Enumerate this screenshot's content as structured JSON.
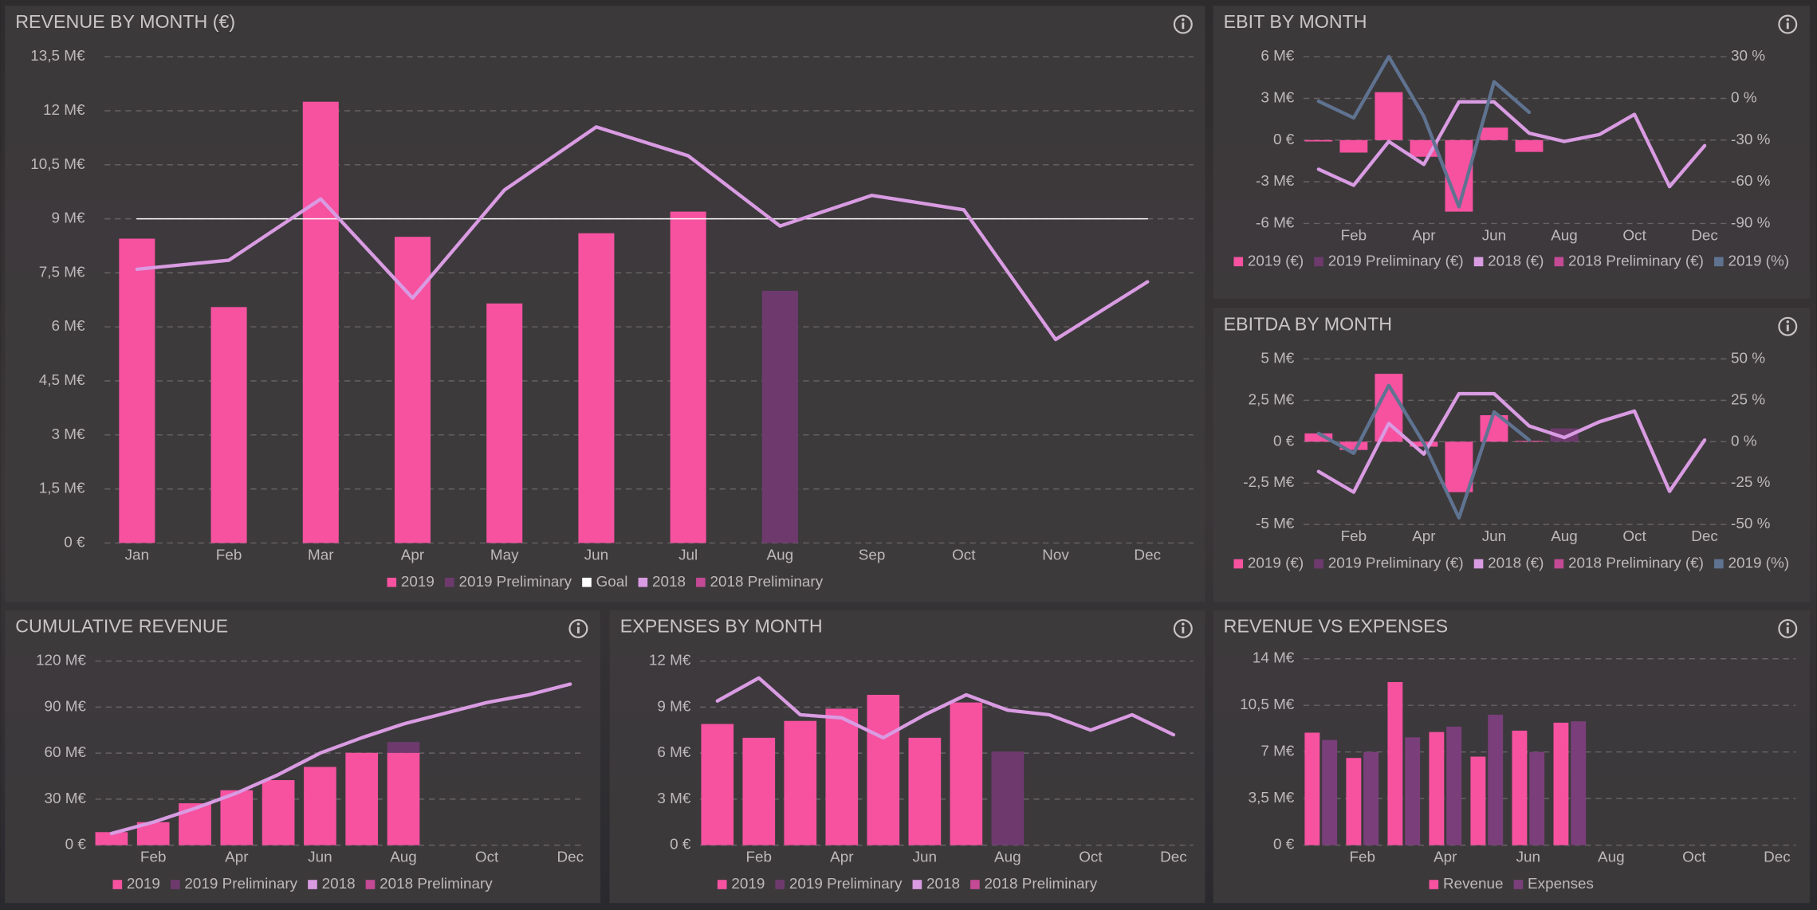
{
  "chart_data": [
    {
      "type": "combo",
      "title": "REVENUE BY MONTH (€)",
      "barmode": "stack",
      "grid": true,
      "categories": [
        "Jan",
        "Feb",
        "Mar",
        "Apr",
        "May",
        "Jun",
        "Jul",
        "Aug",
        "Sep",
        "Oct",
        "Nov",
        "Dec"
      ],
      "series": [
        {
          "name": "2019",
          "type": "bar",
          "color": "#f652a0",
          "values": [
            8.45,
            6.55,
            12.25,
            8.5,
            6.65,
            8.6,
            9.2,
            null,
            null,
            null,
            null,
            null
          ]
        },
        {
          "name": "2019 Preliminary",
          "type": "bar",
          "color": "#6e3a6e",
          "values": [
            null,
            null,
            null,
            null,
            null,
            null,
            null,
            7.0,
            null,
            null,
            null,
            null
          ]
        },
        {
          "name": "Goal",
          "type": "line",
          "color": "#ffffff",
          "line_width": 1,
          "values": [
            9,
            9,
            9,
            9,
            9,
            9,
            9,
            9,
            9,
            9,
            9,
            9
          ]
        },
        {
          "name": "2018",
          "type": "line",
          "color": "#d99be2",
          "values": [
            7.6,
            7.85,
            9.55,
            6.8,
            9.8,
            11.55,
            10.75,
            8.8,
            9.65,
            9.25,
            5.65,
            7.25
          ]
        },
        {
          "name": "2018 Preliminary",
          "type": "line",
          "color": "#c44a95",
          "values": [
            null,
            null,
            null,
            null,
            null,
            null,
            null,
            null,
            null,
            null,
            null,
            null
          ]
        }
      ],
      "ylim": [
        0,
        13.5
      ],
      "yticks": [
        {
          "value": 0,
          "label": "0 €"
        },
        {
          "value": 1.5,
          "label": "1,5 M€"
        },
        {
          "value": 3,
          "label": "3 M€"
        },
        {
          "value": 4.5,
          "label": "4,5 M€"
        },
        {
          "value": 6,
          "label": "6 M€"
        },
        {
          "value": 7.5,
          "label": "7,5 M€"
        },
        {
          "value": 9,
          "label": "9 M€"
        },
        {
          "value": 10.5,
          "label": "10,5 M€"
        },
        {
          "value": 12,
          "label": "12 M€"
        },
        {
          "value": 13.5,
          "label": "13,5 M€"
        }
      ]
    },
    {
      "type": "combo",
      "title": "EBIT BY MONTH",
      "barmode": "stack",
      "grid": true,
      "categories": [
        null,
        "Feb",
        null,
        "Apr",
        null,
        "Jun",
        null,
        "Aug",
        null,
        "Oct",
        null,
        "Dec"
      ],
      "series": [
        {
          "name": "2019 (€)",
          "type": "bar",
          "color": "#f652a0",
          "values": [
            -0.1,
            -0.9,
            3.45,
            -1.2,
            -5.15,
            0.9,
            -0.85,
            null,
            null,
            null,
            null,
            null
          ]
        },
        {
          "name": "2019 Preliminary (€)",
          "type": "bar",
          "color": "#6e3a6e",
          "values": [
            null,
            null,
            null,
            null,
            null,
            null,
            null,
            null,
            null,
            null,
            null,
            null
          ]
        },
        {
          "name": "2018 (€)",
          "type": "line",
          "color": "#d99be2",
          "values": [
            -2.1,
            -3.25,
            -0.1,
            -1.75,
            2.75,
            2.75,
            0.5,
            -0.1,
            0.4,
            1.85,
            -3.35,
            -0.4
          ]
        },
        {
          "name": "2018 Preliminary (€)",
          "type": "line",
          "color": "#c44a95",
          "values": [
            null,
            null,
            null,
            null,
            null,
            null,
            null,
            null,
            null,
            null,
            null,
            null
          ]
        },
        {
          "name": "2019 (%)",
          "type": "line",
          "axis": "y2",
          "color": "#5f7391",
          "values": [
            -2,
            -14,
            30,
            -13,
            -78,
            12,
            -10,
            null,
            null,
            null,
            null,
            null
          ]
        }
      ],
      "ylim": [
        -6,
        6
      ],
      "yticks": [
        {
          "value": -6,
          "label": "-6 M€"
        },
        {
          "value": -3,
          "label": "-3 M€"
        },
        {
          "value": 0,
          "label": "0 €"
        },
        {
          "value": 3,
          "label": "3 M€"
        },
        {
          "value": 6,
          "label": "6 M€"
        }
      ],
      "y2lim": [
        -90,
        30
      ],
      "y2ticks": [
        {
          "value": -90,
          "label": "-90 %"
        },
        {
          "value": -60,
          "label": "-60 %"
        },
        {
          "value": -30,
          "label": "-30 %"
        },
        {
          "value": 0,
          "label": "0 %"
        },
        {
          "value": 30,
          "label": "30 %"
        }
      ]
    },
    {
      "type": "combo",
      "title": "EBITDA BY MONTH",
      "barmode": "stack",
      "grid": true,
      "categories": [
        null,
        "Feb",
        null,
        "Apr",
        null,
        "Jun",
        null,
        "Aug",
        null,
        "Oct",
        null,
        "Dec"
      ],
      "series": [
        {
          "name": "2019 (€)",
          "type": "bar",
          "color": "#f652a0",
          "values": [
            0.5,
            -0.5,
            4.1,
            -0.3,
            -3.05,
            1.6,
            0.05,
            null,
            null,
            null,
            null,
            null
          ]
        },
        {
          "name": "2019 Preliminary (€)",
          "type": "bar",
          "color": "#6e3a6e",
          "values": [
            null,
            null,
            null,
            null,
            null,
            null,
            null,
            0.8,
            null,
            null,
            null,
            null
          ]
        },
        {
          "name": "2018 (€)",
          "type": "line",
          "color": "#d99be2",
          "values": [
            -1.8,
            -3.05,
            1.1,
            -0.75,
            2.9,
            2.9,
            0.95,
            0.25,
            1.2,
            1.85,
            -3.0,
            0.1
          ]
        },
        {
          "name": "2018 Preliminary (€)",
          "type": "line",
          "color": "#c44a95",
          "values": [
            null,
            null,
            null,
            null,
            null,
            null,
            null,
            null,
            null,
            null,
            null,
            null
          ]
        },
        {
          "name": "2019 (%)",
          "type": "line",
          "axis": "y2",
          "color": "#5f7391",
          "values": [
            5,
            -7,
            34,
            -1,
            -46,
            18,
            1,
            null,
            null,
            null,
            null,
            null
          ]
        }
      ],
      "ylim": [
        -5,
        5
      ],
      "yticks": [
        {
          "value": -5,
          "label": "-5 M€"
        },
        {
          "value": -2.5,
          "label": "-2,5 M€"
        },
        {
          "value": 0,
          "label": "0 €"
        },
        {
          "value": 2.5,
          "label": "2,5 M€"
        },
        {
          "value": 5,
          "label": "5 M€"
        }
      ],
      "y2lim": [
        -50,
        50
      ],
      "y2ticks": [
        {
          "value": -50,
          "label": "-50 %"
        },
        {
          "value": -25,
          "label": "-25 %"
        },
        {
          "value": 0,
          "label": "0 %"
        },
        {
          "value": 25,
          "label": "25 %"
        },
        {
          "value": 50,
          "label": "50 %"
        }
      ]
    },
    {
      "type": "combo",
      "title": "CUMULATIVE REVENUE",
      "barmode": "stack",
      "grid": true,
      "categories": [
        null,
        "Feb",
        null,
        "Apr",
        null,
        "Jun",
        null,
        "Aug",
        null,
        "Oct",
        null,
        "Dec"
      ],
      "series": [
        {
          "name": "2019",
          "type": "bar",
          "color": "#f652a0",
          "values": [
            8.5,
            15,
            27.3,
            35.8,
            42.4,
            51,
            60.2,
            60.2,
            null,
            null,
            null,
            null
          ]
        },
        {
          "name": "2019 Preliminary",
          "type": "bar",
          "color": "#6e3a6e",
          "values": [
            null,
            null,
            null,
            null,
            null,
            null,
            null,
            7.0,
            null,
            null,
            null,
            null
          ]
        },
        {
          "name": "2018",
          "type": "line",
          "color": "#d99be2",
          "values": [
            7.6,
            15,
            24,
            34,
            46,
            60,
            70,
            79,
            86,
            93,
            98,
            105
          ]
        },
        {
          "name": "2018 Preliminary",
          "type": "line",
          "color": "#c44a95",
          "values": [
            null,
            null,
            null,
            null,
            null,
            null,
            null,
            null,
            null,
            null,
            null,
            null
          ]
        }
      ],
      "ylim": [
        0,
        120
      ],
      "yticks": [
        {
          "value": 0,
          "label": "0 €"
        },
        {
          "value": 30,
          "label": "30 M€"
        },
        {
          "value": 60,
          "label": "60 M€"
        },
        {
          "value": 90,
          "label": "90 M€"
        },
        {
          "value": 120,
          "label": "120 M€"
        }
      ]
    },
    {
      "type": "combo",
      "title": "EXPENSES BY MONTH",
      "barmode": "stack",
      "grid": true,
      "categories": [
        null,
        "Feb",
        null,
        "Apr",
        null,
        "Jun",
        null,
        "Aug",
        null,
        "Oct",
        null,
        "Dec"
      ],
      "series": [
        {
          "name": "2019",
          "type": "bar",
          "color": "#f652a0",
          "values": [
            7.9,
            7.0,
            8.1,
            8.9,
            9.8,
            7.0,
            9.3,
            null,
            null,
            null,
            null,
            null
          ]
        },
        {
          "name": "2019 Preliminary",
          "type": "bar",
          "color": "#6e3a6e",
          "values": [
            null,
            null,
            null,
            null,
            null,
            null,
            null,
            6.1,
            null,
            null,
            null,
            null
          ]
        },
        {
          "name": "2018",
          "type": "line",
          "color": "#d99be2",
          "values": [
            9.4,
            10.9,
            8.5,
            8.3,
            7.0,
            8.5,
            9.8,
            8.8,
            8.5,
            7.5,
            8.5,
            7.2
          ]
        },
        {
          "name": "2018 Preliminary",
          "type": "line",
          "color": "#c44a95",
          "values": [
            null,
            null,
            null,
            null,
            null,
            null,
            null,
            null,
            null,
            null,
            null,
            null
          ]
        }
      ],
      "ylim": [
        0,
        12
      ],
      "yticks": [
        {
          "value": 0,
          "label": "0 €"
        },
        {
          "value": 3,
          "label": "3 M€"
        },
        {
          "value": 6,
          "label": "6 M€"
        },
        {
          "value": 9,
          "label": "9 M€"
        },
        {
          "value": 12,
          "label": "12 M€"
        }
      ]
    },
    {
      "type": "bar",
      "title": "REVENUE VS EXPENSES",
      "barmode": "group",
      "grid": true,
      "categories": [
        null,
        "Feb",
        null,
        "Apr",
        null,
        "Jun",
        null,
        "Aug",
        null,
        "Oct",
        null,
        "Dec"
      ],
      "series": [
        {
          "name": "Revenue",
          "type": "bar",
          "color": "#f652a0",
          "values": [
            8.45,
            6.55,
            12.25,
            8.5,
            6.65,
            8.6,
            9.2,
            null,
            null,
            null,
            null,
            null
          ]
        },
        {
          "name": "Expenses",
          "type": "bar",
          "color": "#7a3f7b",
          "values": [
            7.9,
            7.0,
            8.1,
            8.9,
            9.8,
            7.0,
            9.3,
            null,
            null,
            null,
            null,
            null
          ]
        }
      ],
      "ylim": [
        0,
        14
      ],
      "yticks": [
        {
          "value": 0,
          "label": "0 €"
        },
        {
          "value": 3.5,
          "label": "3,5 M€"
        },
        {
          "value": 7,
          "label": "7 M€"
        },
        {
          "value": 10.5,
          "label": "10,5 M€"
        },
        {
          "value": 14,
          "label": "14 M€"
        }
      ]
    }
  ]
}
